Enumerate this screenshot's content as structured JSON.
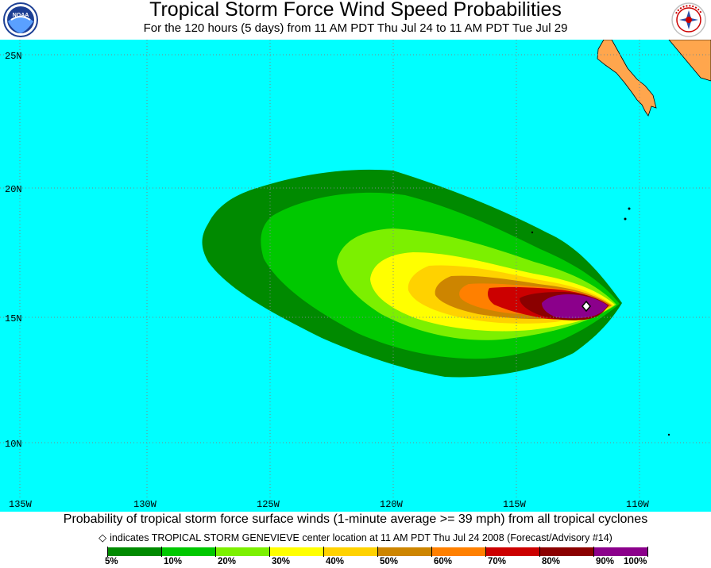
{
  "header": {
    "title": "Tropical Storm Force Wind Speed Probabilities",
    "subtitle": "For the 120 hours (5 days) from 11 AM PDT Thu Jul 24 to 11 AM PDT Tue Jul 29",
    "left_logo_text": "NOAA",
    "right_logo_text": "NATIONAL WEATHER SERVICE"
  },
  "map": {
    "ocean_color": "#00FFFF",
    "land_color": "#FFA64D",
    "lat_labels": [
      "25N",
      "20N",
      "15N",
      "10N"
    ],
    "lon_labels": [
      "135W",
      "130W",
      "125W",
      "120W",
      "115W",
      "110W"
    ],
    "storm_marker": "center location"
  },
  "footer": {
    "caption": "Probability of tropical storm force surface winds (1-minute average >= 39 mph) from all tropical cyclones",
    "note_symbol": "◇",
    "note": "indicates TROPICAL STORM GENEVIEVE center location at 11 AM PDT Thu Jul 24 2008 (Forecast/Advisory #14)"
  },
  "legend": {
    "labels": [
      "5%",
      "10%",
      "20%",
      "30%",
      "40%",
      "50%",
      "60%",
      "70%",
      "80%",
      "90%",
      "100%"
    ],
    "colors": [
      "#008A00",
      "#00C800",
      "#7CF000",
      "#FFFF00",
      "#FFD200",
      "#CD8500",
      "#FF8000",
      "#CC0000",
      "#8B0000",
      "#8B008B"
    ]
  }
}
